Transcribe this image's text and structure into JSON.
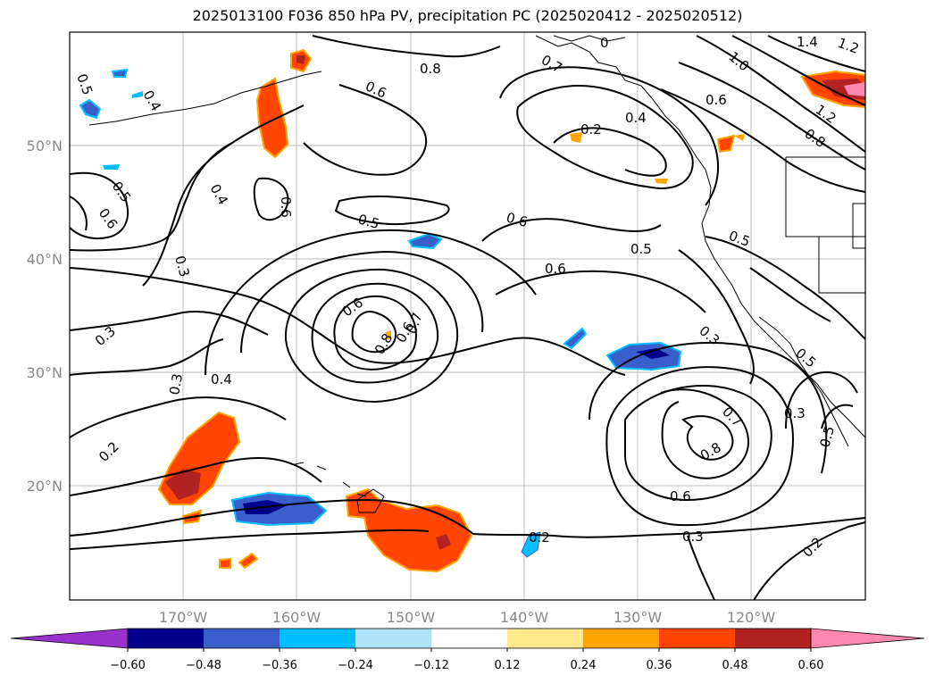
{
  "title": "2025013100 F036 850 hPa PV, precipitation PC (2025020412 - 2025020512)",
  "latitudes": [
    "50°N",
    "40°N",
    "30°N",
    "20°N"
  ],
  "longitudes": [
    "170°W",
    "160°W",
    "150°W",
    "140°W",
    "130°W",
    "120°W"
  ],
  "colorbar": {
    "ticks": [
      "−0.60",
      "−0.48",
      "−0.36",
      "−0.24",
      "−0.12",
      "0.12",
      "0.24",
      "0.36",
      "0.48",
      "0.60"
    ],
    "colors": [
      "#9932cc",
      "#00008b",
      "#3a5fcd",
      "#00bfff",
      "#aee3fa",
      "#ffffff",
      "#ffe98c",
      "#ffa500",
      "#ff4500",
      "#b22222",
      "#ff86b0"
    ]
  },
  "contour_labels": [
    {
      "text": "0.5"
    },
    {
      "text": "0.4"
    },
    {
      "text": "0.8"
    },
    {
      "text": "0.6"
    },
    {
      "text": "0"
    },
    {
      "text": "1.4"
    },
    {
      "text": "1.2"
    },
    {
      "text": "1.0"
    },
    {
      "text": "0.7"
    },
    {
      "text": "0.4"
    },
    {
      "text": "0.2"
    },
    {
      "text": "0.6"
    },
    {
      "text": "1.2"
    },
    {
      "text": "0.8"
    },
    {
      "text": "0.4"
    },
    {
      "text": "0.5"
    },
    {
      "text": "0.6"
    },
    {
      "text": "0.6"
    },
    {
      "text": "0.5"
    },
    {
      "text": "0.6"
    },
    {
      "text": "0.5"
    },
    {
      "text": "0.5"
    },
    {
      "text": "0.6"
    },
    {
      "text": "0.3"
    },
    {
      "text": "0.6"
    },
    {
      "text": "0.6"
    },
    {
      "text": "0.8"
    },
    {
      "text": "0.7"
    },
    {
      "text": "0.3"
    },
    {
      "text": "0.3"
    },
    {
      "text": "0.4"
    },
    {
      "text": "0.3"
    },
    {
      "text": "0.5"
    },
    {
      "text": "0.3"
    },
    {
      "text": "0.2"
    },
    {
      "text": "0.7"
    },
    {
      "text": "0.8"
    },
    {
      "text": "0.5"
    },
    {
      "text": "0.6"
    },
    {
      "text": "0.2"
    },
    {
      "text": "0.3"
    },
    {
      "text": "0.2"
    }
  ]
}
